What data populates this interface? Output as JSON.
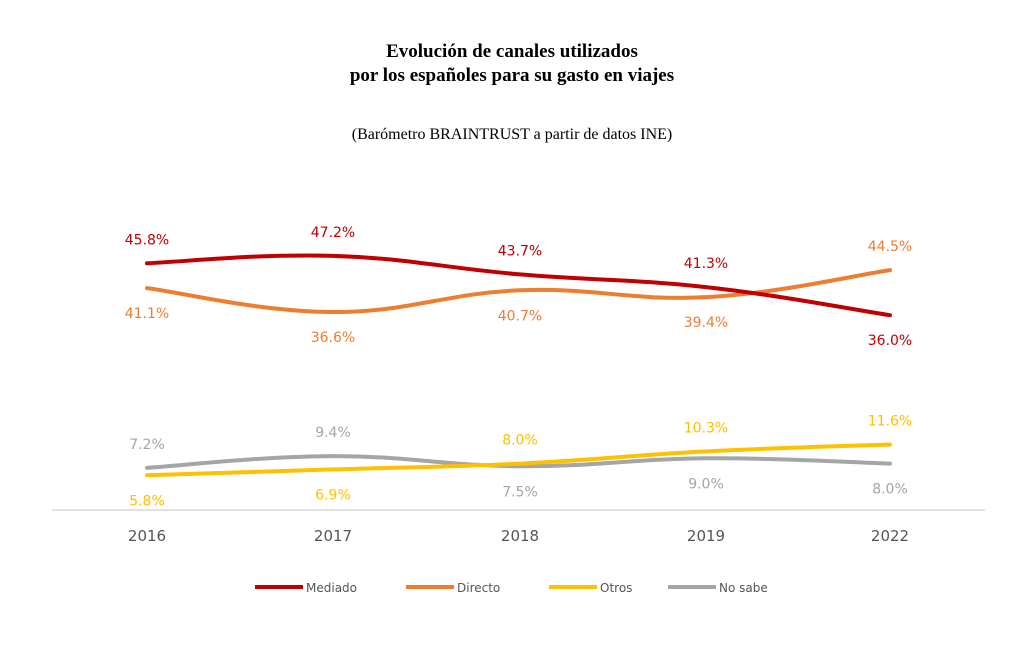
{
  "chart_data": {
    "type": "line",
    "title_line1": "Evolución de canales utilizados",
    "title_line2": "por los españoles para su gasto en viajes",
    "subtitle": "(Barómetro BRAINTRUST a partir de datos INE)",
    "categories": [
      "2016",
      "2017",
      "2018",
      "2019",
      "2022"
    ],
    "series": [
      {
        "name": "Mediado",
        "values": [
          45.8,
          47.2,
          43.7,
          41.3,
          36.0
        ],
        "labels": [
          "45.8%",
          "47.2%",
          "43.7%",
          "41.3%",
          "36.0%"
        ],
        "color": "#C00000",
        "label_pos": [
          "above",
          "above",
          "above",
          "above",
          "below"
        ]
      },
      {
        "name": "Directo",
        "values": [
          41.1,
          36.6,
          40.7,
          39.4,
          44.5
        ],
        "labels": [
          "41.1%",
          "36.6%",
          "40.7%",
          "39.4%",
          "44.5%"
        ],
        "color": "#ED7D31",
        "label_pos": [
          "below",
          "below",
          "below",
          "below",
          "above"
        ]
      },
      {
        "name": "Otros",
        "values": [
          5.8,
          6.9,
          8.0,
          10.3,
          11.6
        ],
        "labels": [
          "5.8%",
          "6.9%",
          "8.0%",
          "10.3%",
          "11.6%"
        ],
        "color": "#FFC000",
        "label_pos": [
          "below",
          "below",
          "above",
          "above",
          "above"
        ]
      },
      {
        "name": "No sabe",
        "values": [
          7.2,
          9.4,
          7.5,
          9.0,
          8.0
        ],
        "labels": [
          "7.2%",
          "9.4%",
          "7.5%",
          "9.0%",
          "8.0%"
        ],
        "color": "#A5A5A5",
        "label_pos": [
          "above",
          "above",
          "below",
          "below",
          "below"
        ]
      }
    ],
    "legend_position": "bottom",
    "grid": false
  }
}
